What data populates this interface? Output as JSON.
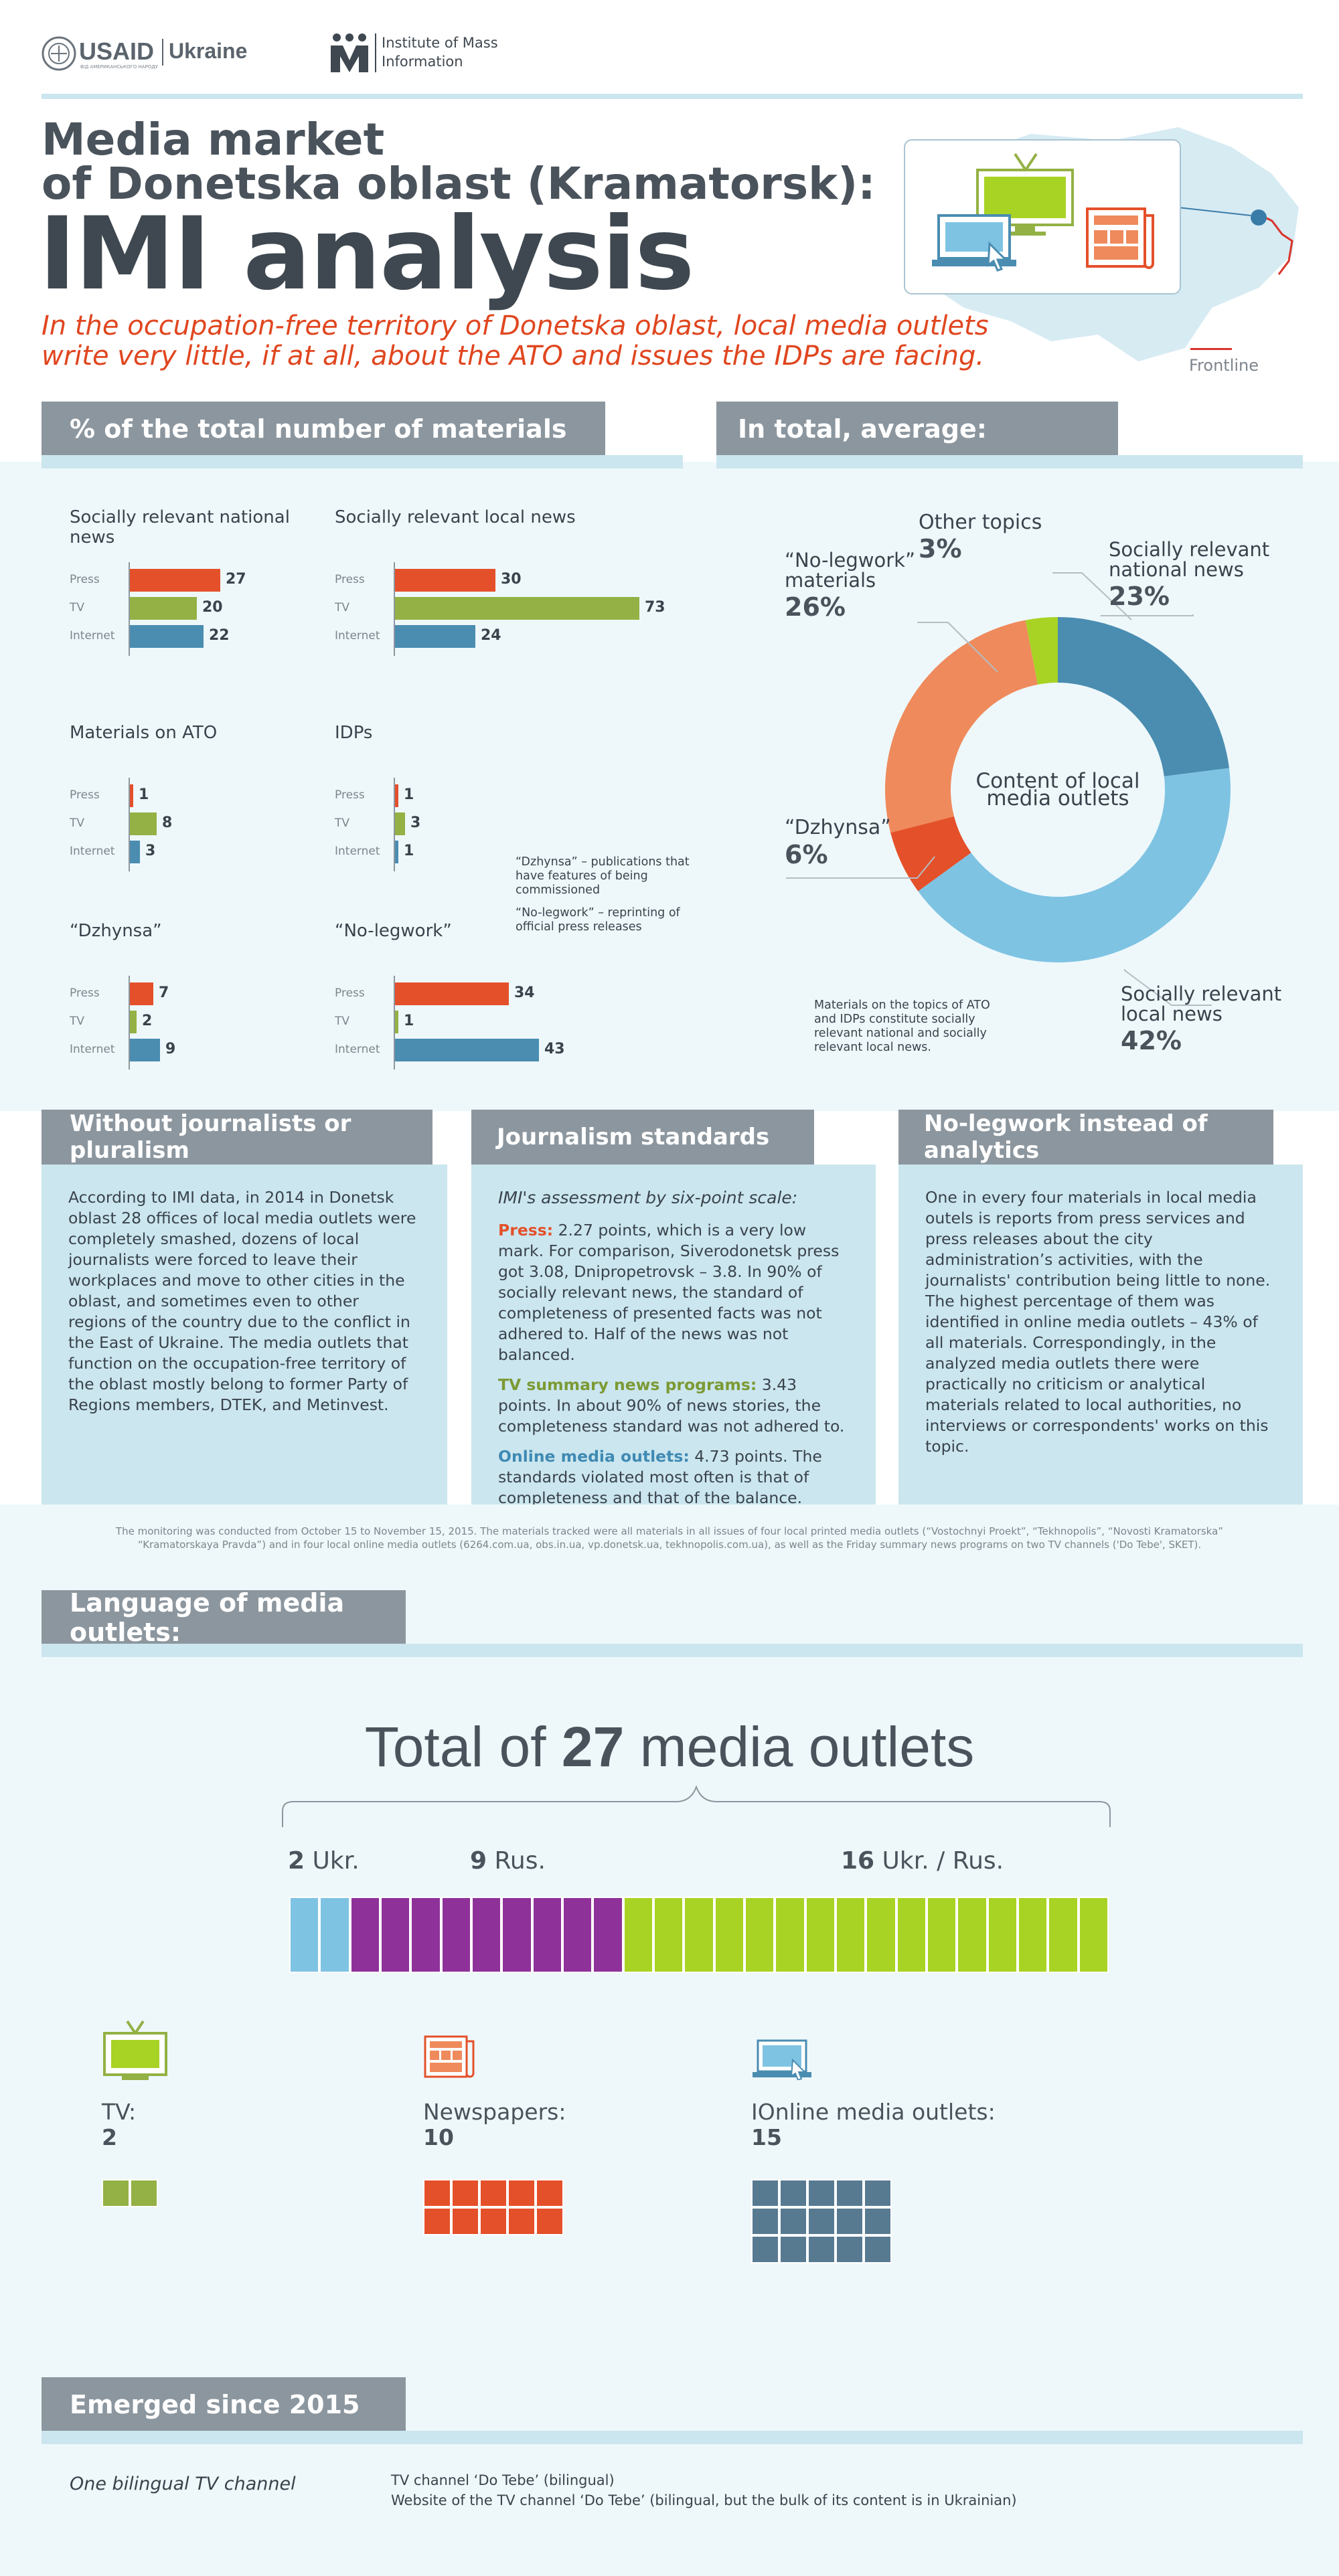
{
  "header": {
    "usaid": "USAID",
    "usaid_sub": "ВІД АМЕРИКАНСЬКОГО НАРОДУ",
    "ukraine": "Ukraine",
    "imi_line1": "Institute of Mass",
    "imi_line2": "Information"
  },
  "title": {
    "line1": "Media market",
    "line2": "of Donetska oblast (Kramatorsk):",
    "big": "IMI analysis",
    "subtitle_line1": "In the occupation-free territory of Donetska oblast, local media outlets",
    "subtitle_line2": "write very little, if at all, about the ATO and issues the IDPs are facing.",
    "frontline": "Frontline"
  },
  "sections": {
    "percent_header": "% of the total number of materials",
    "average_header": "In total, average:"
  },
  "bar_groups": [
    {
      "title": "Socially relevant national news",
      "rows": [
        {
          "label": "Press",
          "value": 27
        },
        {
          "label": "TV",
          "value": 20
        },
        {
          "label": "Internet",
          "value": 22
        }
      ]
    },
    {
      "title": "Socially relevant local news",
      "rows": [
        {
          "label": "Press",
          "value": 30
        },
        {
          "label": "TV",
          "value": 73
        },
        {
          "label": "Internet",
          "value": 24
        }
      ]
    },
    {
      "title": "Materials on ATO",
      "rows": [
        {
          "label": "Press",
          "value": 1
        },
        {
          "label": "TV",
          "value": 8
        },
        {
          "label": "Internet",
          "value": 3
        }
      ]
    },
    {
      "title": "IDPs",
      "rows": [
        {
          "label": "Press",
          "value": 1
        },
        {
          "label": "TV",
          "value": 3
        },
        {
          "label": "Internet",
          "value": 1
        }
      ]
    },
    {
      "title": "“Dzhynsa”",
      "rows": [
        {
          "label": "Press",
          "value": 7
        },
        {
          "label": "TV",
          "value": 2
        },
        {
          "label": "Internet",
          "value": 9
        }
      ]
    },
    {
      "title": "“No-legwork”",
      "rows": [
        {
          "label": "Press",
          "value": 34
        },
        {
          "label": "TV",
          "value": 1
        },
        {
          "label": "Internet",
          "value": 43
        }
      ]
    }
  ],
  "series_colors": {
    "Press": "#e4502a",
    "TV": "#93b144",
    "Internet": "#4a8db1"
  },
  "notes": {
    "dzhynsa": "“Dzhynsa” – publications that have features of being commissioned",
    "nolegwork": "“No-legwork” – reprinting of official press releases",
    "donut_note": "Materials on the topics of ATO and IDPs constitute socially relevant national and socially relevant local news."
  },
  "donut": {
    "center_line1": "Content of local",
    "center_line2": "media outlets",
    "slices": [
      {
        "name": "Socially relevant national news",
        "value": 23,
        "pct": "23%",
        "color": "#4a8db1"
      },
      {
        "name": "Socially relevant local news",
        "value": 42,
        "pct": "42%",
        "color": "#7fc3e3"
      },
      {
        "name": "“Dzhynsa”",
        "value": 6,
        "pct": "6%",
        "color": "#e4502a"
      },
      {
        "name": "“No-legwork” materials",
        "value": 26,
        "pct": "26%",
        "color": "#ef8a5c"
      },
      {
        "name": "Other topics",
        "value": 3,
        "pct": "3%",
        "color": "#a8d324"
      }
    ],
    "labels": {
      "national_line1": "Socially relevant",
      "national_line2": "national news",
      "local_line1": "Socially relevant",
      "local_line2": "local news",
      "dzhynsa": "“Dzhynsa”",
      "nolegwork_line1": "“No-legwork”",
      "nolegwork_line2": "materials",
      "other": "Other topics"
    }
  },
  "panels": {
    "p1_title": "Without journalists or pluralism",
    "p1_text": "According to IMI data, in 2014 in Donetsk oblast 28 offices of local media outlets were completely smashed, dozens of local journalists were forced to leave their workplaces and move to other cities in the oblast, and sometimes even to other regions of the country due to the conflict in the East of Ukraine. The media outlets that function on the occupation-free territory of the oblast mostly belong to former Party of Regions members, DTEK, and Metinvest.",
    "p2_title": "Journalism standards",
    "p2_intro": "IMI's assessment by six-point scale:",
    "p2_press_label": "Press:",
    "p2_press_text": " 2.27 points, which is a very low mark. For comparison, Siverodonetsk press got 3.08, Dnipropetrovsk – 3.8. In 90% of socially relevant news, the standard of completeness of presented facts was not adhered to. Half of the news was not balanced.",
    "p2_tv_label": "TV summary news programs:",
    "p2_tv_text": " 3.43 points. In about 90% of news stories, the completeness standard was not adhered to.",
    "p2_online_label": "Online media outlets:",
    "p2_online_text": "  4.73 points. The standards violated most often is that of completeness and that of the balance.",
    "p3_title": "No-legwork instead of analytics",
    "p3_text": "One in every four materials in local media outels is reports from press services and  press releases about the city administration’s activities, with the journalists' contribution being little to none. The highest percentage of them was identified in online media outlets – 43% of all materials. Correspondingly, in the analyzed media outlets there were practically no criticism or analytical materials related to local authorities, no interviews or correspondents' works on this topic."
  },
  "footnote": {
    "line1": "The monitoring was conducted from October 15 to November 15, 2015. The materials tracked were all materials in all issues of four local printed media outlets (“Vostochnyi Proekt”, “Tekhnopolis”,  “Novosti Kramatorska”",
    "line2": "“Kramatorskaya Pravda”) and in four local online media outlets (6264.com.ua, obs.in.ua, vp.donetsk.ua, tekhnopolis.com.ua), as well as the Friday summary news programs on two TV channels ('Do Tebe', SKET)."
  },
  "language": {
    "header": "Language of media outlets:",
    "total_prefix": "Total of ",
    "total_num": "27",
    "total_suffix": " media outlets",
    "ukr_num": "2",
    "ukr_label": " Ukr.",
    "rus_num": "9",
    "rus_label": " Rus.",
    "both_num": "16",
    "both_label": " Ukr. / Rus.",
    "counts": {
      "ukr": 2,
      "rus": 9,
      "both": 16
    },
    "colors": {
      "ukr": "#7fc3e3",
      "rus": "#8e3299",
      "both": "#a8d324"
    }
  },
  "types": {
    "tv_label": "TV:",
    "tv_count": "2",
    "news_label": "Newspapers:",
    "news_count": "10",
    "online_label": "IOnline media outlets:",
    "online_count": "15",
    "counts": {
      "tv": 2,
      "news": 10,
      "online": 15
    },
    "colors": {
      "tv": "#93b144",
      "news": "#e4502a",
      "online": "#577a91"
    }
  },
  "emerged": {
    "header": "Emerged since 2015",
    "left": "One bilingual TV channel",
    "right_line1": "TV channel ‘Do Tebe’ (bilingual)",
    "right_line2": "Website of the TV channel ‘Do Tebe’ (bilingual, but the bulk of its content is in Ukrainian)"
  }
}
